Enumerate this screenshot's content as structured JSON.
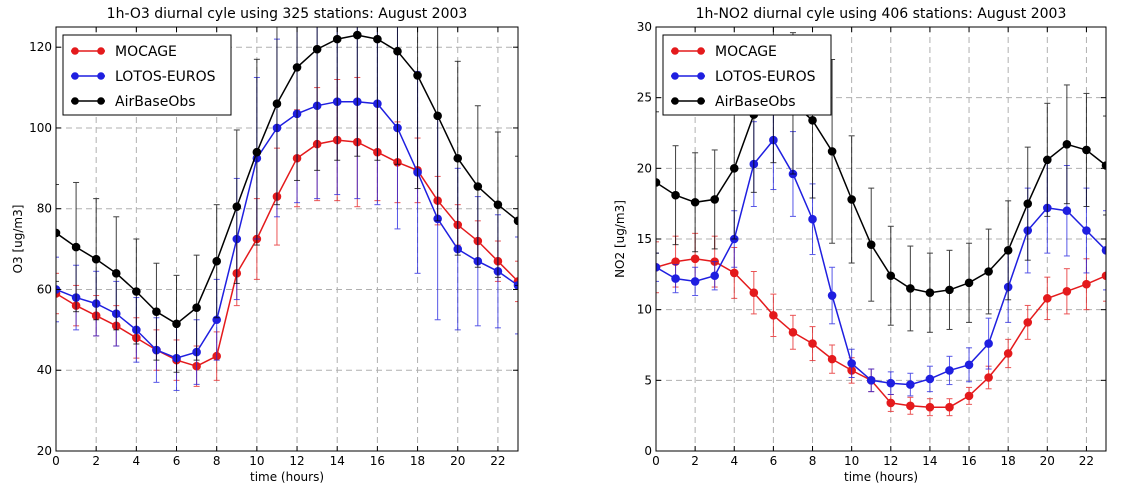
{
  "chart_data": [
    {
      "type": "line",
      "title": "1h-O3 diurnal cyle using 325 stations: August 2003",
      "xlabel": "time (hours)",
      "ylabel": "O3 [ug/m3]",
      "xlim": [
        0,
        23
      ],
      "ylim": [
        20,
        125
      ],
      "xticks": [
        0,
        2,
        4,
        6,
        8,
        10,
        12,
        14,
        16,
        18,
        20,
        22
      ],
      "yticks": [
        20,
        40,
        60,
        80,
        100,
        120
      ],
      "grid": true,
      "legend_position": "top-left",
      "x": [
        0,
        1,
        2,
        3,
        4,
        5,
        6,
        7,
        8,
        9,
        10,
        11,
        12,
        13,
        14,
        15,
        16,
        17,
        18,
        19,
        20,
        21,
        22,
        23
      ],
      "series": [
        {
          "name": "MOCAGE",
          "color": "#e41a1c",
          "values": [
            59,
            56,
            53.5,
            51,
            48,
            45,
            42.5,
            41,
            43.5,
            64,
            72.5,
            83,
            92.5,
            96,
            97,
            96.5,
            94,
            91.5,
            89.5,
            82,
            76,
            72,
            67,
            62
          ],
          "errors": [
            5,
            5,
            5,
            5,
            5,
            5,
            5,
            5,
            6,
            8,
            10,
            12,
            12,
            14,
            15,
            16,
            12,
            10,
            8,
            6,
            5,
            5,
            5,
            5
          ]
        },
        {
          "name": "LOTOS-EUROS",
          "color": "#1f1fe0",
          "values": [
            60,
            58,
            56.5,
            54,
            50,
            45,
            43,
            44.5,
            52.5,
            72.5,
            92.5,
            100,
            103.5,
            105.5,
            106.5,
            106.5,
            106,
            100,
            89,
            77.5,
            70,
            67,
            64.5,
            61
          ],
          "errors": [
            8,
            8,
            8,
            8,
            8,
            8,
            8,
            8,
            10,
            15,
            20,
            22,
            22,
            23,
            23,
            24,
            25,
            25,
            25,
            25,
            20,
            16,
            14,
            12
          ]
        },
        {
          "name": "AirBaseObs",
          "color": "#000000",
          "values": [
            74,
            70.5,
            67.5,
            64,
            59.5,
            54.5,
            51.5,
            55.5,
            67,
            80.5,
            94,
            106,
            115,
            119.5,
            122,
            123,
            122,
            119,
            113,
            103,
            92.5,
            85.5,
            81,
            77
          ],
          "errors": [
            12,
            16,
            15,
            14,
            13,
            12,
            12,
            13,
            14,
            19,
            23,
            25,
            28,
            30,
            30,
            30,
            30,
            28,
            28,
            26,
            24,
            20,
            18,
            16
          ]
        }
      ]
    },
    {
      "type": "line",
      "title": "1h-NO2 diurnal cyle using 406 stations: August 2003",
      "xlabel": "time (hours)",
      "ylabel": "NO2 [ug/m3]",
      "xlim": [
        0,
        23
      ],
      "ylim": [
        0,
        30
      ],
      "xticks": [
        0,
        2,
        4,
        6,
        8,
        10,
        12,
        14,
        16,
        18,
        20,
        22
      ],
      "yticks": [
        0,
        5,
        10,
        15,
        20,
        25,
        30
      ],
      "grid": true,
      "legend_position": "top-left",
      "x": [
        0,
        1,
        2,
        3,
        4,
        5,
        6,
        7,
        8,
        9,
        10,
        11,
        12,
        13,
        14,
        15,
        16,
        17,
        18,
        19,
        20,
        21,
        22,
        23
      ],
      "series": [
        {
          "name": "MOCAGE",
          "color": "#e41a1c",
          "values": [
            13,
            13.4,
            13.6,
            13.4,
            12.6,
            11.2,
            9.6,
            8.4,
            7.6,
            6.5,
            5.7,
            5,
            3.4,
            3.2,
            3.1,
            3.1,
            3.9,
            5.2,
            6.9,
            9.1,
            10.8,
            11.3,
            11.8,
            12.4
          ],
          "errors": [
            1.8,
            1.8,
            1.8,
            1.8,
            1.8,
            1.5,
            1.5,
            1.2,
            1.2,
            1,
            0.9,
            0.8,
            0.6,
            0.6,
            0.6,
            0.6,
            0.6,
            0.8,
            1,
            1.2,
            1.5,
            1.6,
            1.8,
            1.8
          ]
        },
        {
          "name": "LOTOS-EUROS",
          "color": "#1f1fe0",
          "values": [
            13,
            12.2,
            12,
            12.4,
            15,
            20.3,
            22,
            19.6,
            16.4,
            11,
            6.2,
            5,
            4.8,
            4.7,
            5.1,
            5.7,
            6.1,
            7.6,
            11.6,
            15.6,
            17.2,
            17,
            15.6,
            14.2
          ],
          "errors": [
            1,
            1,
            1,
            1,
            2,
            3,
            3.5,
            3,
            2.5,
            2,
            1,
            0.8,
            0.8,
            0.8,
            0.9,
            1,
            1.2,
            1.8,
            2.5,
            3,
            3.2,
            3.2,
            3,
            2.8
          ]
        },
        {
          "name": "AirBaseObs",
          "color": "#000000",
          "values": [
            19,
            18.1,
            17.6,
            17.8,
            20,
            23.8,
            25.4,
            24.6,
            23.4,
            21.2,
            17.8,
            14.6,
            12.4,
            11.5,
            11.2,
            11.4,
            11.9,
            12.7,
            14.2,
            17.5,
            20.6,
            21.7,
            21.3,
            20.2
          ],
          "errors": [
            5,
            3.5,
            3.5,
            3.5,
            5,
            5.5,
            5,
            5,
            5.5,
            6.5,
            4.5,
            4,
            3.5,
            3,
            2.8,
            2.8,
            2.8,
            3,
            3.5,
            4,
            4,
            4.2,
            4,
            3.5
          ]
        }
      ]
    }
  ]
}
